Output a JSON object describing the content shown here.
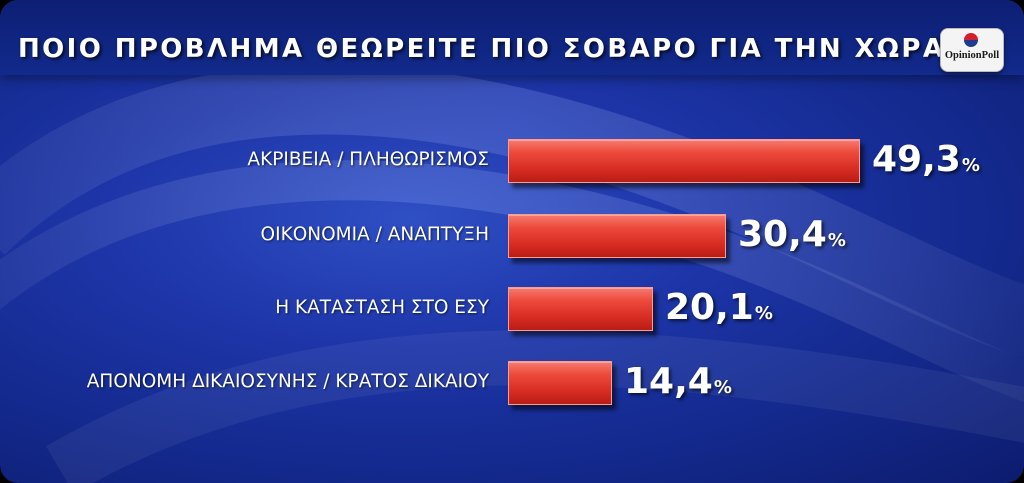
{
  "title": "ΠΟΙΟ ΠΡΟΒΛΗΜΑ ΘΕΩΡΕΙΤΕ ΠΙΟ ΣΟΒΑΡΟ ΓΙΑ ΤΗΝ ΧΩΡΑ;",
  "logo": {
    "text": "OpinionPoll",
    "colors": [
      "#d21f2b",
      "#1f3b8f"
    ]
  },
  "colors": {
    "bar": "#e03a2e",
    "background": "#1d35a8",
    "text": "#ffffff"
  },
  "chart_data": {
    "type": "bar",
    "orientation": "horizontal",
    "title": "ΠΟΙΟ ΠΡΟΒΛΗΜΑ ΘΕΩΡΕΙΤΕ ΠΙΟ ΣΟΒΑΡΟ ΓΙΑ ΤΗΝ ΧΩΡΑ;",
    "categories": [
      "ΑΚΡΙΒΕΙΑ / ΠΛΗΘΩΡΙΣΜΟΣ",
      "ΟΙΚΟΝΟΜΙΑ / ΑΝΑΠΤΥΞΗ",
      "Η ΚΑΤΑΣΤΑΣΗ ΣΤΟ ΕΣΥ",
      "ΑΠΟΝΟΜΗ ΔΙΚΑΙΟΣΥΝΗΣ / ΚΡΑΤΟΣ ΔΙΚΑΙΟΥ"
    ],
    "values": [
      49.3,
      30.4,
      20.1,
      14.4
    ],
    "value_labels": [
      "49,3",
      "30,4",
      "20,1",
      "14,4"
    ],
    "unit": "%",
    "grid": false,
    "legend": "none"
  }
}
